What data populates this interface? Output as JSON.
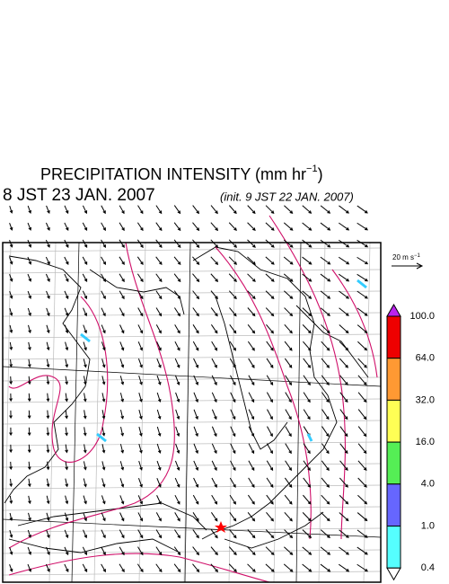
{
  "header": {
    "title_main": "PRECIPITATION INTENSITY (mm hr",
    "title_sup": "−1",
    "title_end": ")",
    "valid_time": "8 JST 23 JAN. 2007",
    "init_time": "(init. 9 JST 22 JAN. 2007)"
  },
  "wind_scale": {
    "label": "20 m s",
    "label_sup": "−1"
  },
  "colorbar": {
    "labels": [
      "100.0",
      "64.0",
      "32.0",
      "16.0",
      "4.0",
      "1.0",
      "0.4"
    ],
    "colors": [
      "#ee0000",
      "#ff9933",
      "#ffff55",
      "#55ee55",
      "#6666ff",
      "#55ffff"
    ],
    "over_color": "#bb22ee",
    "under_color": "#ffffff"
  }
}
